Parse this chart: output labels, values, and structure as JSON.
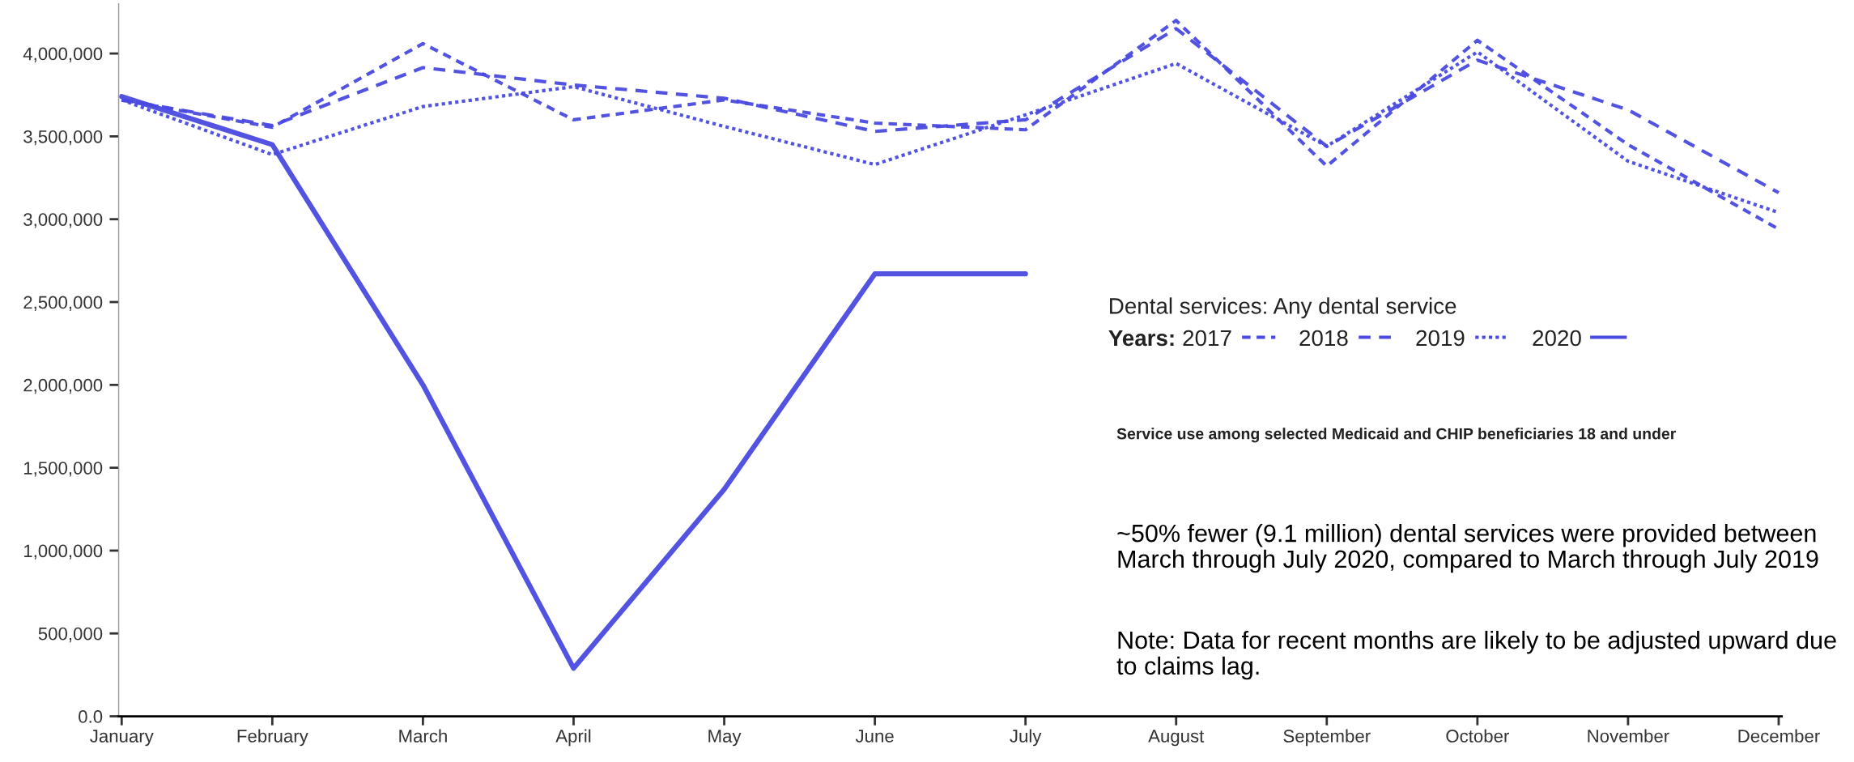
{
  "chart_data": {
    "type": "line",
    "categories": [
      "January",
      "February",
      "March",
      "April",
      "May",
      "June",
      "July",
      "August",
      "September",
      "October",
      "November",
      "December"
    ],
    "series": [
      {
        "name": "2017",
        "color": "#4a4ae0",
        "line_style": "dashed",
        "values": [
          3720000,
          3555000,
          4060000,
          3600000,
          3720000,
          3580000,
          3540000,
          4200000,
          3320000,
          4080000,
          3450000,
          2940000
        ]
      },
      {
        "name": "2018",
        "color": "#4a4ae0",
        "line_style": "dashed",
        "values": [
          3720000,
          3565000,
          3915000,
          3810000,
          3730000,
          3530000,
          3600000,
          4150000,
          3440000,
          3960000,
          3660000,
          3160000
        ]
      },
      {
        "name": "2019",
        "color": "#4a4ae0",
        "line_style": "dotted",
        "values": [
          3720000,
          3390000,
          3680000,
          3800000,
          3560000,
          3330000,
          3630000,
          3940000,
          3440000,
          4010000,
          3350000,
          3040000
        ]
      },
      {
        "name": "2020",
        "color": "#4a4ae0",
        "line_style": "solid",
        "values": [
          3740000,
          3450000,
          2000000,
          290000,
          1370000,
          2670000,
          2670000,
          null,
          null,
          null,
          null,
          null
        ]
      }
    ],
    "ylim": [
      0,
      4300000
    ],
    "yticks": [
      {
        "value": 0,
        "label": "0.0"
      },
      {
        "value": 500000,
        "label": "500,000"
      },
      {
        "value": 1000000,
        "label": "1,000,000"
      },
      {
        "value": 1500000,
        "label": "1,500,000"
      },
      {
        "value": 2000000,
        "label": "2,000,000"
      },
      {
        "value": 2500000,
        "label": "2,500,000"
      },
      {
        "value": 3000000,
        "label": "3,000,000"
      },
      {
        "value": 3500000,
        "label": "3,500,000"
      },
      {
        "value": 4000000,
        "label": "4,000,000"
      }
    ],
    "grid": false,
    "legend": "right",
    "legend_title": "Years:",
    "annotations": [
      "Dental services: Any dental service",
      "Service use among selected Medicaid and CHIP beneficiaries 18 and under",
      "~50% fewer (9.1 million) dental services were provided between March through July 2020, compared to March through July 2019",
      "Note: Data for recent months are likely to be adjusted upward due to claims lag."
    ]
  }
}
